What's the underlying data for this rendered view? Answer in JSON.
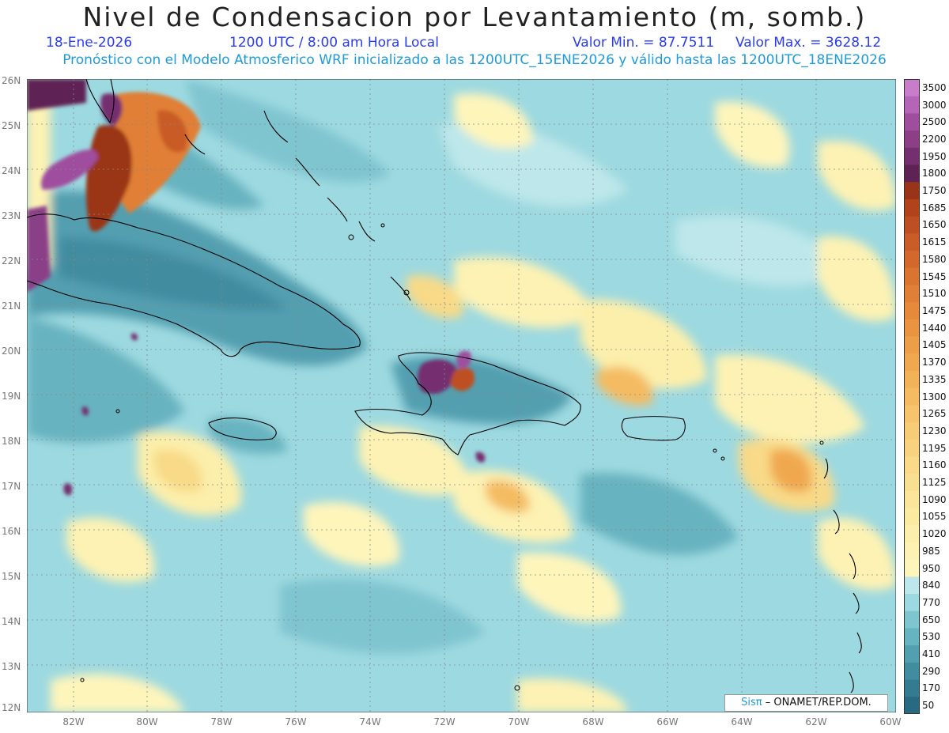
{
  "header": {
    "title": "Nivel de Condensacion por Levantamiento (m, somb.)",
    "date": "18-Ene-2026",
    "time": "1200 UTC / 8:00 am Hora Local",
    "min_label": "Valor Min. = 87.7511",
    "max_label": "Valor Max. = 3628.12",
    "subtitle": "Pronóstico con el Modelo Atmosferico WRF inicializado a las 1200UTC_15ENE2026 y válido hasta las  1200UTC_18ENE2026"
  },
  "map": {
    "lat_labels": [
      "26N",
      "25N",
      "24N",
      "23N",
      "22N",
      "21N",
      "20N",
      "19N",
      "18N",
      "17N",
      "16N",
      "15N",
      "14N",
      "13N",
      "12N"
    ],
    "lon_labels": [
      "82W",
      "80W",
      "78W",
      "76W",
      "74W",
      "72W",
      "70W",
      "68W",
      "66W",
      "64W",
      "62W",
      "60W"
    ]
  },
  "colorbar": {
    "labels": [
      "3500",
      "3000",
      "2500",
      "2200",
      "1950",
      "1800",
      "1750",
      "1685",
      "1650",
      "1615",
      "1580",
      "1545",
      "1510",
      "1475",
      "1440",
      "1405",
      "1370",
      "1335",
      "1300",
      "1265",
      "1230",
      "1195",
      "1160",
      "1125",
      "1090",
      "1055",
      "1020",
      "985",
      "950",
      "840",
      "770",
      "650",
      "530",
      "410",
      "290",
      "170",
      "50"
    ],
    "colors": [
      "#c77dc9",
      "#b565b8",
      "#9f4e9e",
      "#8a3f87",
      "#742f6f",
      "#5e2354",
      "#9a3418",
      "#b0421c",
      "#bd4f22",
      "#c95c27",
      "#d2682c",
      "#da7431",
      "#e07f36",
      "#e6893b",
      "#ea9441",
      "#ed9e48",
      "#f0a850",
      "#f2b258",
      "#f4bb62",
      "#f5c46c",
      "#f6cc76",
      "#f7d37f",
      "#f8da88",
      "#f9e091",
      "#fae59a",
      "#fbeaa2",
      "#fcefab",
      "#fdf2b3",
      "#fef5bb",
      "#bde7ea",
      "#9dd9e0",
      "#7fc5d0",
      "#67b3c0",
      "#529fb0",
      "#428ca0",
      "#347b91",
      "#286a82"
    ]
  },
  "credit": {
    "brand": "Sisπ",
    "org": "– ONAMET/REP.DOM."
  }
}
